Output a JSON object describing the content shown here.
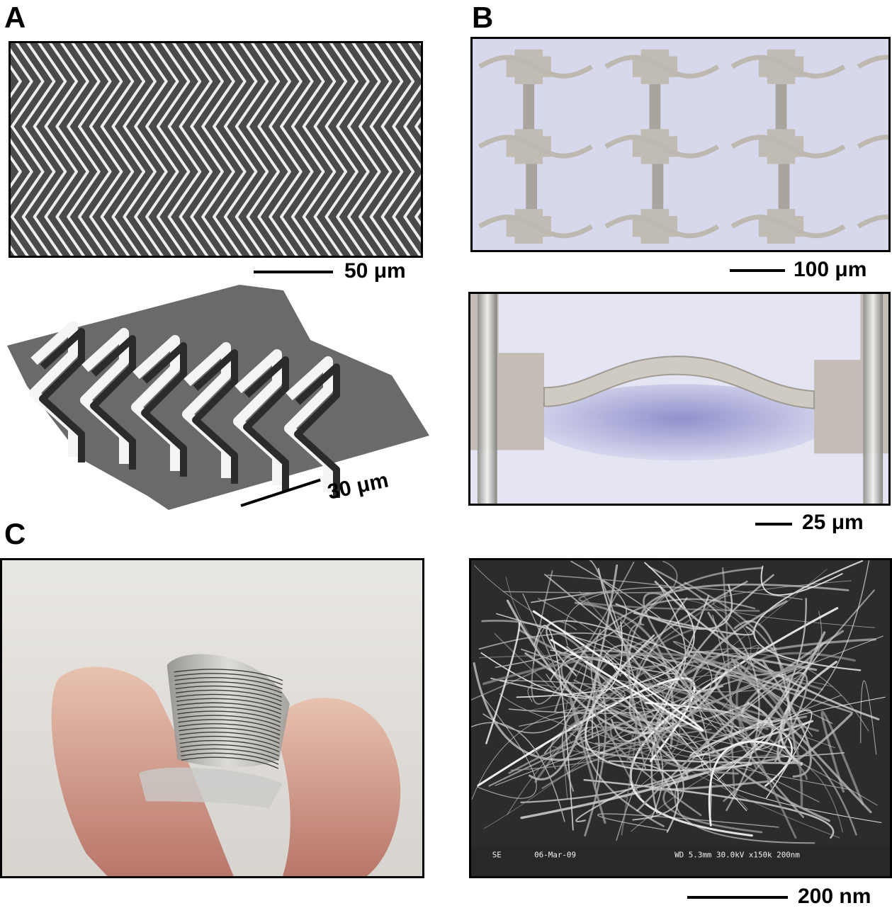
{
  "panels": {
    "a": {
      "label": "A",
      "top_scale": "50 μm",
      "bottom_scale": "30 μm"
    },
    "b": {
      "label": "B",
      "top_scale": "100 μm",
      "bottom_scale": "25 μm"
    },
    "c": {
      "label": "C"
    },
    "sem": {
      "scale": "200 nm",
      "footer": {
        "mode": "SE",
        "date": "06-Mar-09",
        "params": "WD 5.3mm 30.0kV x150k 200nm"
      }
    }
  }
}
